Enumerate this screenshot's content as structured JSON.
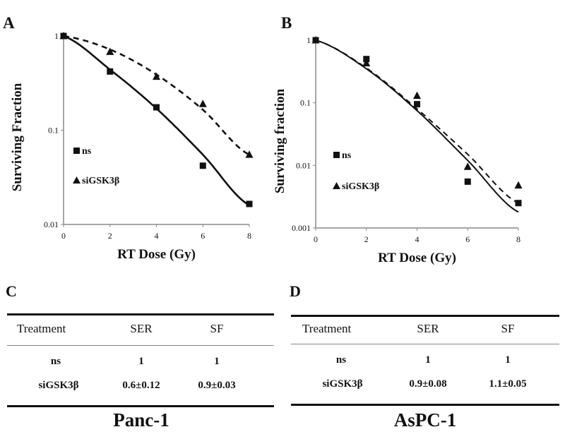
{
  "chart_data": [
    {
      "panel": "A",
      "type": "scatter",
      "xlabel": "RT Dose (Gy)",
      "ylabel": "Surviving Fraction",
      "xlim": [
        0,
        8
      ],
      "ylim": [
        0.01,
        1
      ],
      "yscale": "log",
      "xticks": [
        "0",
        "2",
        "4",
        "6",
        "8"
      ],
      "yticks": [
        "0.01",
        "0.1",
        "1"
      ],
      "legend_position": "left",
      "series": [
        {
          "name": "ns",
          "marker": "square",
          "line": "solid",
          "x": [
            0,
            2,
            4,
            6,
            8
          ],
          "y": [
            1,
            0.42,
            0.175,
            0.042,
            0.0165
          ],
          "fit_y": [
            1,
            0.44,
            0.17,
            0.055,
            0.016
          ]
        },
        {
          "name": "siGSK3β",
          "marker": "triangle",
          "line": "dashed",
          "x": [
            0,
            2,
            4,
            6,
            8
          ],
          "y": [
            1,
            0.68,
            0.37,
            0.19,
            0.055
          ],
          "fit_y": [
            1,
            0.72,
            0.39,
            0.165,
            0.055
          ]
        }
      ]
    },
    {
      "panel": "B",
      "type": "scatter",
      "xlabel": "RT Dose (Gy)",
      "ylabel": "Surviving fraction",
      "xlim": [
        0,
        8
      ],
      "ylim": [
        0.001,
        1
      ],
      "yscale": "log",
      "xticks": [
        "0",
        "2",
        "4",
        "6",
        "8"
      ],
      "yticks": [
        "0.001",
        "0.01",
        "0.1",
        "1"
      ],
      "legend_position": "left",
      "series": [
        {
          "name": "ns",
          "marker": "square",
          "line": "solid",
          "x": [
            0,
            2,
            4,
            6,
            8
          ],
          "y": [
            1,
            0.5,
            0.095,
            0.0055,
            0.0025
          ],
          "fit_y": [
            1,
            0.35,
            0.075,
            0.012,
            0.0018
          ]
        },
        {
          "name": "siGSK3β",
          "marker": "triangle",
          "line": "dashed",
          "x": [
            0,
            2,
            4,
            6,
            8
          ],
          "y": [
            1,
            0.43,
            0.13,
            0.0095,
            0.0048
          ],
          "fit_y": [
            1,
            0.36,
            0.08,
            0.015,
            0.0025
          ]
        }
      ]
    }
  ],
  "tables": [
    {
      "letter": "C",
      "headers": [
        "Treatment",
        "SER",
        "SF"
      ],
      "rows": [
        [
          "ns",
          "1",
          "1"
        ],
        [
          "siGSK3β",
          "0.6±0.12",
          "0.9±0.03"
        ]
      ],
      "caption": "Panc-1"
    },
    {
      "letter": "D",
      "headers": [
        "Treatment",
        "SER",
        "SF"
      ],
      "rows": [
        [
          "ns",
          "1",
          "1"
        ],
        [
          "siGSK3β",
          "0.9±0.08",
          "1.1±0.05"
        ]
      ],
      "caption": "AsPC-1"
    }
  ]
}
